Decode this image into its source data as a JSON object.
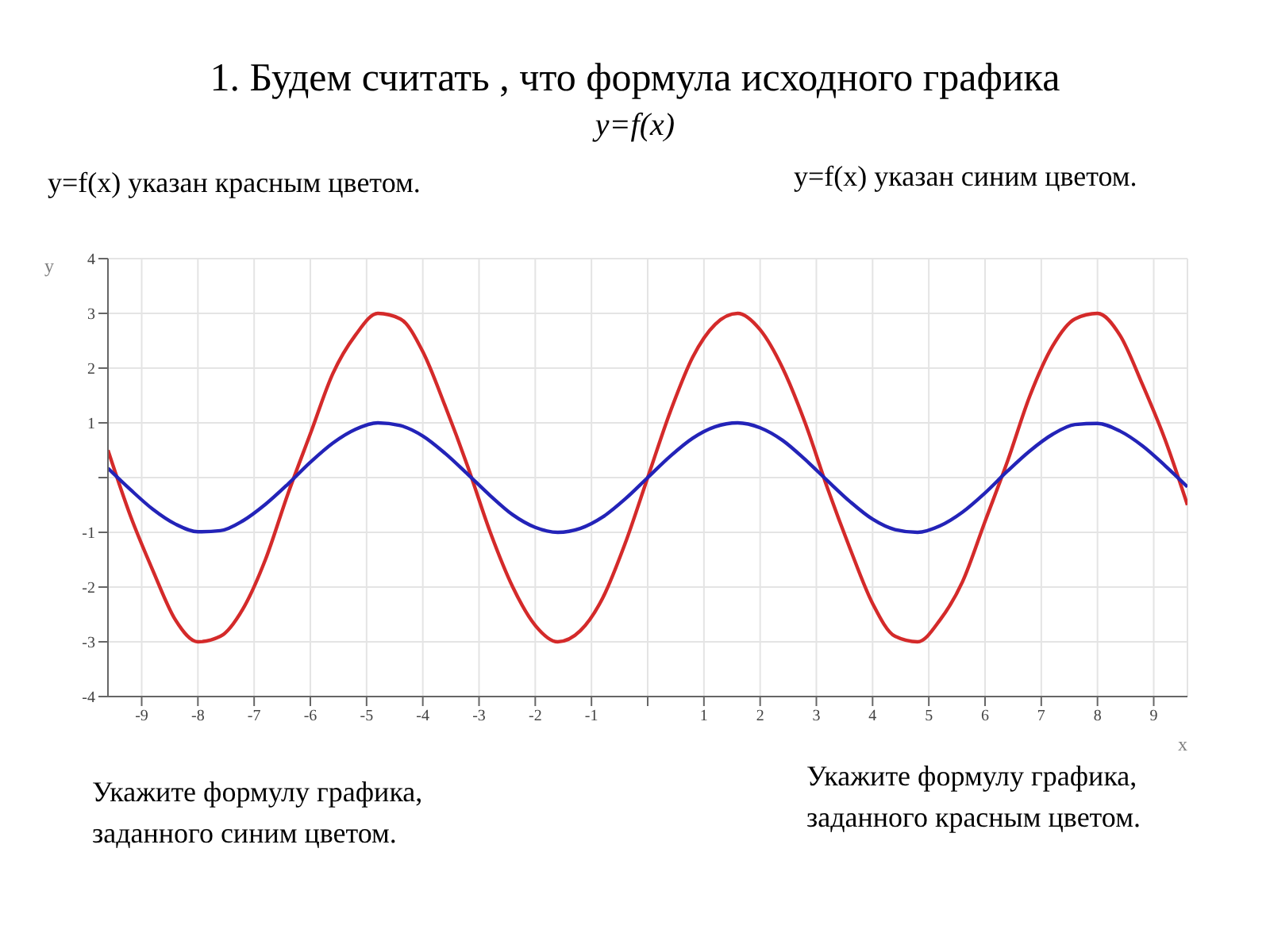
{
  "chart_data": {
    "type": "line",
    "title": "1. Будем считать , что формула исходного графика",
    "subtitle": "y=f(x)",
    "annotations": [
      "y=f(x)  указан красным цветом.",
      "y=f(x)  указан синим цветом.",
      "Укажите формулу графика, заданного синим цветом.",
      "Укажите формулу графика, заданного красным цветом."
    ],
    "xlabel": "x",
    "ylabel": "y",
    "x": [
      -9.6,
      -9.2,
      -8.8,
      -8.4,
      -8.0,
      -7.6,
      -7.2,
      -6.8,
      -6.4,
      -6.0,
      -5.6,
      -5.2,
      -4.8,
      -4.4,
      -4.0,
      -3.6,
      -3.2,
      -2.8,
      -2.4,
      -2.0,
      -1.6,
      -1.2,
      -0.8,
      -0.4,
      0,
      0.4,
      0.8,
      1.2,
      1.6,
      2.0,
      2.4,
      2.8,
      3.2,
      3.6,
      4.0,
      4.4,
      4.8,
      5.2,
      5.6,
      6.0,
      6.4,
      6.8,
      7.2,
      7.6,
      8.0,
      8.4,
      8.8,
      9.2,
      9.6
    ],
    "series": [
      {
        "color": "#d42a2a",
        "values": [
          0.5,
          -0.7,
          -1.7,
          -2.6,
          -3.0,
          -2.9,
          -2.4,
          -1.5,
          -0.3,
          0.8,
          1.9,
          2.6,
          3.0,
          2.9,
          2.3,
          1.3,
          0.2,
          -1.0,
          -2.0,
          -2.7,
          -3.0,
          -2.8,
          -2.2,
          -1.2,
          0,
          1.2,
          2.2,
          2.8,
          3.0,
          2.7,
          2.0,
          1.0,
          -0.2,
          -1.3,
          -2.3,
          -2.9,
          -3.0,
          -2.6,
          -1.9,
          -0.8,
          0.3,
          1.5,
          2.4,
          2.9,
          3.0,
          2.6,
          1.7,
          0.7,
          -0.5
        ]
      },
      {
        "color": "#2323b8",
        "values": [
          0.17,
          -0.22,
          -0.58,
          -0.85,
          -0.99,
          -0.97,
          -0.79,
          -0.49,
          -0.12,
          0.28,
          0.63,
          0.88,
          1.0,
          0.95,
          0.76,
          0.44,
          0.06,
          -0.33,
          -0.68,
          -0.91,
          -1.0,
          -0.93,
          -0.72,
          -0.39,
          0,
          0.39,
          0.72,
          0.93,
          1.0,
          0.91,
          0.68,
          0.33,
          -0.06,
          -0.44,
          -0.76,
          -0.95,
          -1.0,
          -0.88,
          -0.63,
          -0.28,
          0.12,
          0.49,
          0.79,
          0.97,
          0.99,
          0.85,
          0.58,
          0.22,
          -0.17
        ]
      }
    ],
    "xlim": [
      -9.6,
      9.6
    ],
    "ylim": [
      -4,
      4
    ],
    "xticks": [
      -9,
      -8,
      -7,
      -6,
      -5,
      -4,
      -3,
      -2,
      -1,
      {
        "value": 0,
        "label": null
      },
      1,
      2,
      3,
      4,
      5,
      6,
      7,
      8,
      9
    ],
    "yticks": [
      -4,
      -3,
      -2,
      -1,
      {
        "value": 0,
        "label": null
      },
      1,
      2,
      3,
      4
    ],
    "grid": true,
    "marker": "none",
    "line_style": "solid",
    "legend": false
  }
}
